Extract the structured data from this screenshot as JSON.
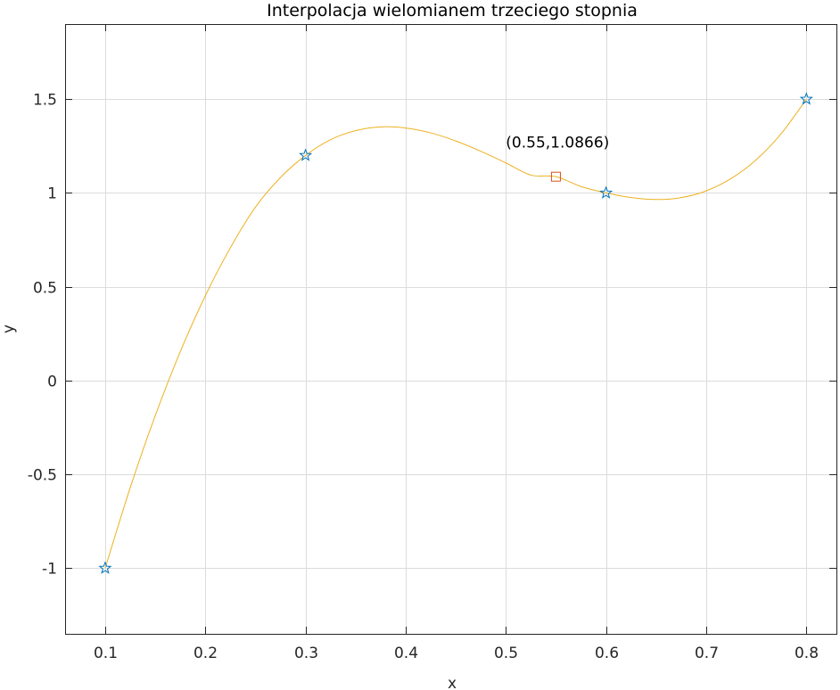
{
  "chart_data": {
    "type": "line",
    "title": "Interpolacja wielomianem trzeciego stopnia",
    "xlabel": "x",
    "ylabel": "y",
    "xlim": [
      0.06,
      0.83
    ],
    "ylim": [
      -1.35,
      1.9
    ],
    "xticks": [
      0.1,
      0.2,
      0.3,
      0.4,
      0.5,
      0.6,
      0.7,
      0.8
    ],
    "xtick_labels": [
      "0.1",
      "0.2",
      "0.3",
      "0.4",
      "0.5",
      "0.6",
      "0.7",
      "0.8"
    ],
    "yticks": [
      -1,
      -0.5,
      0,
      0.5,
      1,
      1.5
    ],
    "ytick_labels": [
      "-1",
      "-0.5",
      "0",
      "0.5",
      "1",
      "1.5"
    ],
    "grid": true,
    "series": [
      {
        "kind": "curve",
        "color": "#EDB120",
        "x": [
          0.1,
          0.125,
          0.15,
          0.175,
          0.2,
          0.225,
          0.25,
          0.275,
          0.3,
          0.325,
          0.35,
          0.375,
          0.4,
          0.425,
          0.45,
          0.475,
          0.5,
          0.525,
          0.55,
          0.575,
          0.6,
          0.625,
          0.65,
          0.675,
          0.7,
          0.725,
          0.75,
          0.775,
          0.8
        ],
        "y": [
          -1.0,
          -0.571,
          -0.187,
          0.154,
          0.452,
          0.708,
          0.924,
          1.082,
          1.2,
          1.284,
          1.332,
          1.352,
          1.346,
          1.32,
          1.277,
          1.222,
          1.16,
          1.095,
          1.087,
          1.034,
          1.0,
          0.975,
          0.965,
          0.975,
          1.011,
          1.077,
          1.177,
          1.317,
          1.5
        ]
      },
      {
        "kind": "markers",
        "marker": "star",
        "color": "#0072BD",
        "x": [
          0.1,
          0.3,
          0.6,
          0.8
        ],
        "y": [
          -1.0,
          1.2,
          1.0,
          1.5
        ]
      },
      {
        "kind": "markers",
        "marker": "square",
        "color": "#D95319",
        "x": [
          0.55
        ],
        "y": [
          1.0866
        ]
      }
    ],
    "annotations": [
      {
        "text": "(0.55,1.0866)",
        "x": 0.5,
        "y": 1.27
      }
    ]
  }
}
